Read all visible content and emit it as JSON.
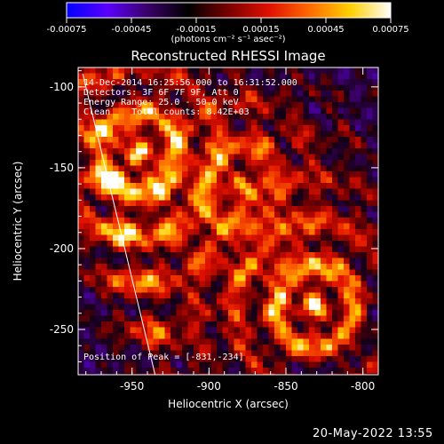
{
  "colorbar": {
    "tick_labels": [
      "-0.00075",
      "-0.00045",
      "-0.00015",
      "0.00015",
      "0.00045",
      "0.00075"
    ],
    "range": [
      -0.00075,
      0.00075
    ],
    "unit_label": "(photons cm⁻² s⁻¹ asec⁻²)",
    "colors": [
      "#0000ff",
      "#5a00ff",
      "#3a0068",
      "#000000",
      "#7a0000",
      "#e01000",
      "#ff6a00",
      "#ffd000",
      "#ffffff"
    ]
  },
  "annotations": {
    "line1": "14-Dec-2014 16:25:56.000 to 16:31:52.000",
    "line2": "Detectors: 3F 6F 7F 9F, Att 0",
    "line3": "Energy Range: 25.0 - 50.0 keV",
    "line4": "Clean    Total counts: 8.42E+03",
    "peak": "Position of Peak = [-831,-234]"
  },
  "timestamp": "20-May-2022 13:55",
  "chart_data": {
    "type": "heatmap",
    "title": "Reconstructed RHESSI Image",
    "xlabel": "Heliocentric X (arcsec)",
    "ylabel": "Heliocentric Y (arcsec)",
    "xlim": [
      -985,
      -790
    ],
    "ylim": [
      -278,
      -88
    ],
    "x_ticks": [
      -950,
      -900,
      -850,
      -800
    ],
    "y_ticks": [
      -100,
      -150,
      -200,
      -250
    ],
    "x_tick_labels": [
      "-950",
      "-900",
      "-850",
      "-800"
    ],
    "y_tick_labels": [
      "-100",
      "-150",
      "-200",
      "-250"
    ],
    "peak": {
      "x": -831,
      "y": -234
    },
    "limb_line": [
      [
        -982,
        -92
      ],
      [
        -935,
        -278
      ]
    ],
    "bright_regions": [
      {
        "x": -945,
        "y": -140,
        "level": 0.9
      },
      {
        "x": -831,
        "y": -234,
        "level": 1.0
      },
      {
        "x": -880,
        "y": -160,
        "level": 0.6
      }
    ]
  }
}
